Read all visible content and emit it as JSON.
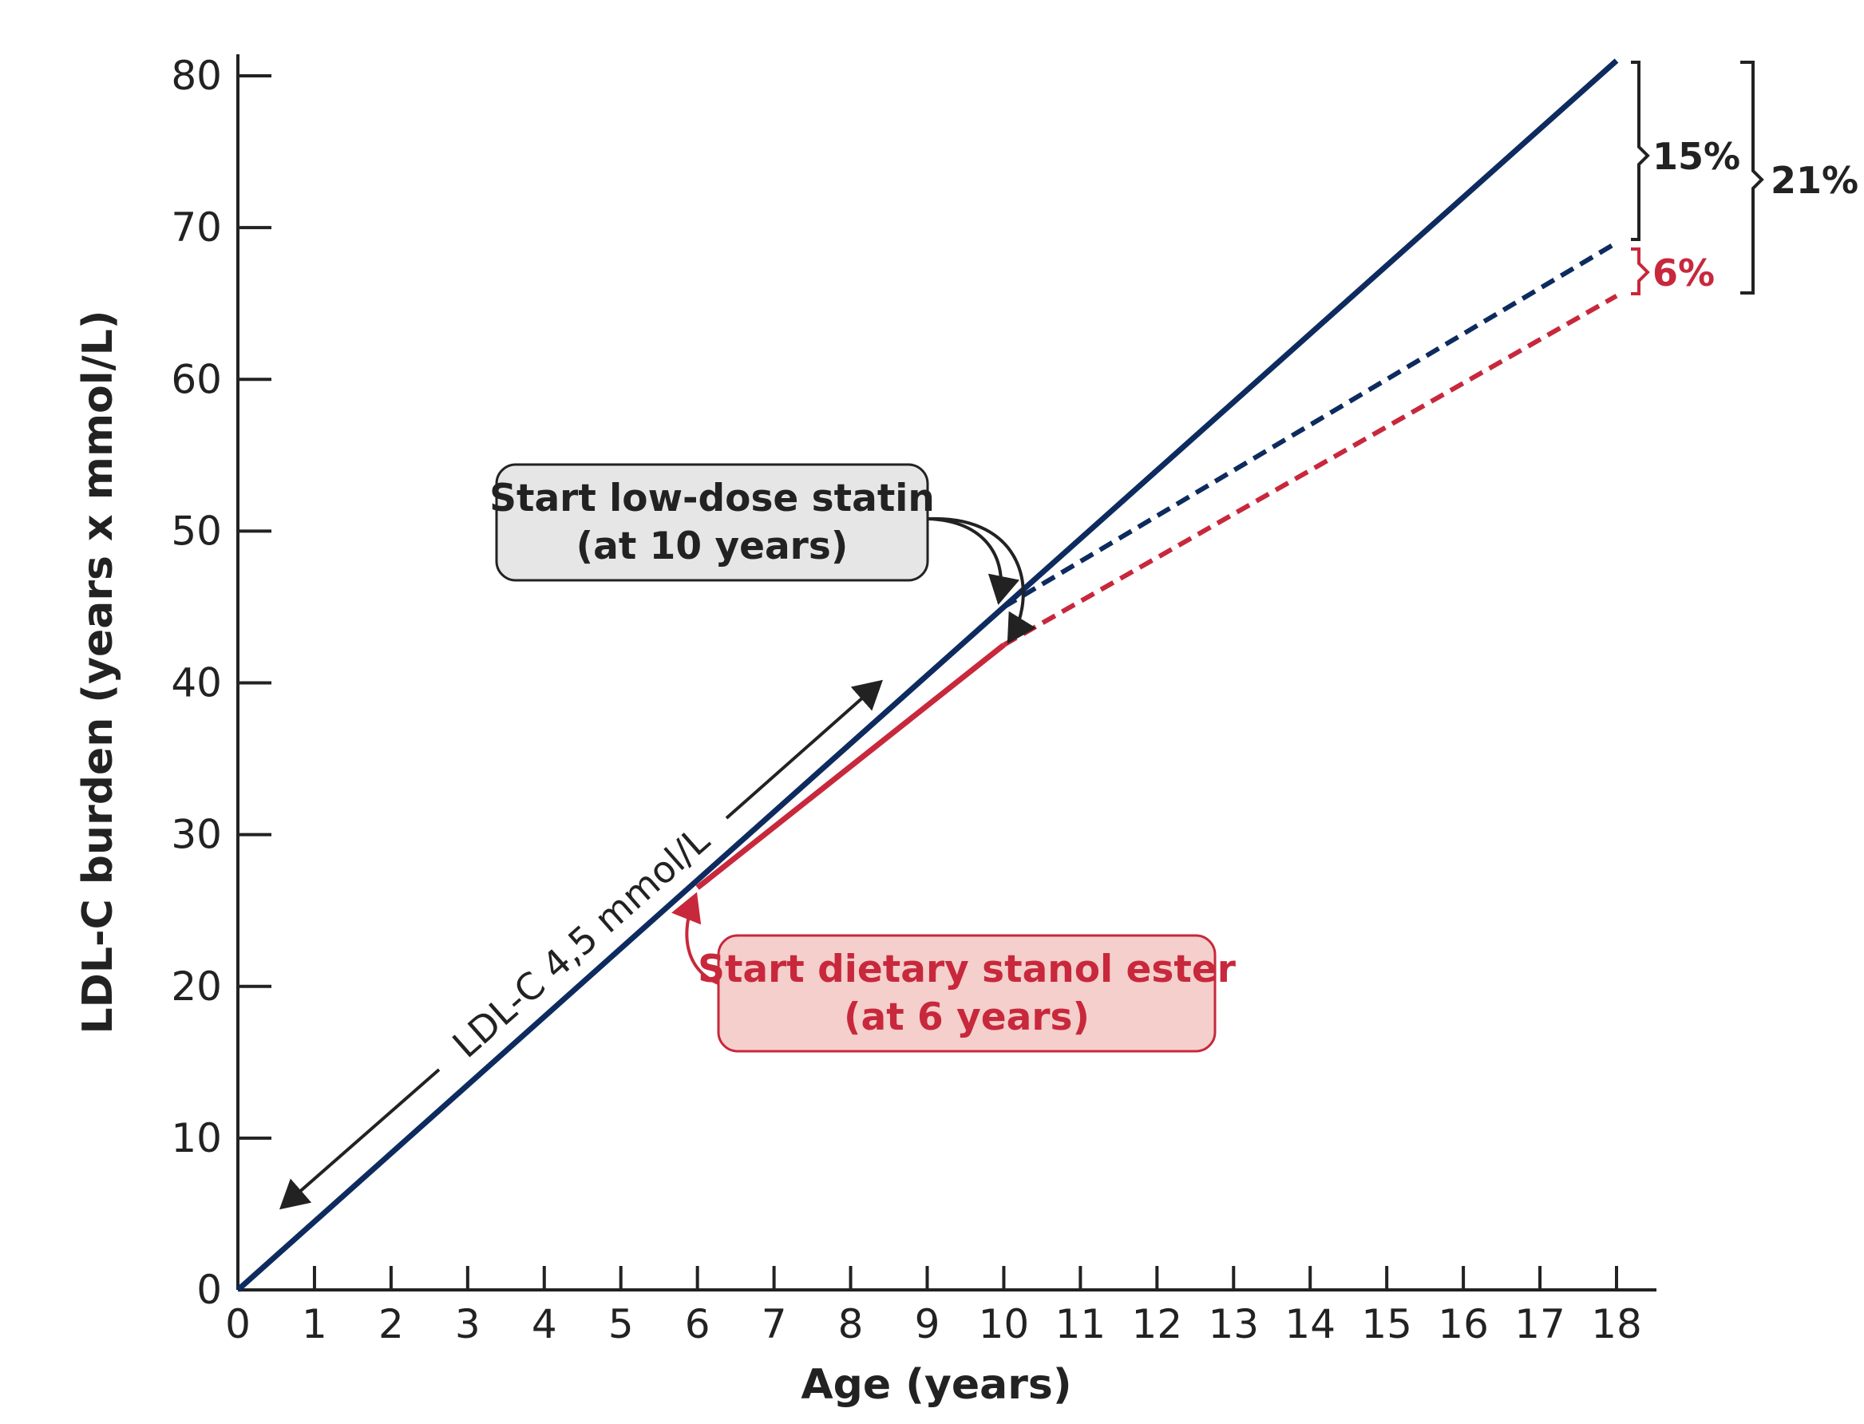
{
  "chart_data": {
    "type": "line",
    "xlabel": "Age (years)",
    "ylabel": "LDL-C burden (years x mmol/L)",
    "xlim": [
      0,
      18
    ],
    "ylim": [
      0,
      80
    ],
    "x_ticks": [
      "0",
      "1",
      "2",
      "3",
      "4",
      "5",
      "6",
      "7",
      "8",
      "9",
      "10",
      "11",
      "12",
      "13",
      "14",
      "15",
      "16",
      "17",
      "18"
    ],
    "y_ticks": [
      "0",
      "10",
      "20",
      "30",
      "40",
      "50",
      "60",
      "70",
      "80"
    ],
    "grid": false,
    "series": [
      {
        "style": "solid",
        "color": "#0d2b5e",
        "x": [
          0,
          18
        ],
        "y": [
          0,
          81
        ]
      },
      {
        "style": "dashed",
        "color": "#0d2b5e",
        "x": [
          10,
          18
        ],
        "y": [
          45,
          69
        ]
      },
      {
        "style": "solid",
        "color": "#c8283c",
        "x": [
          6,
          10
        ],
        "y": [
          26.5,
          42.5
        ]
      },
      {
        "style": "dashed",
        "color": "#c8283c",
        "x": [
          10,
          18
        ],
        "y": [
          42.5,
          65.5
        ]
      }
    ],
    "annotations": {
      "diagonal_label": "LDL-C 4,5 mmol/L",
      "statin": {
        "line1": "Start low-dose statin",
        "line2": "(at 10 years)"
      },
      "stanol": {
        "line1": "Start dietary stanol ester",
        "line2": "(at 6 years)"
      },
      "pct_15": "15%",
      "pct_21": "21%",
      "pct_6": "6%"
    },
    "colors": {
      "navy": "#0d2b5e",
      "red": "#c8283c",
      "statin_box_fill": "#e6e6e6",
      "stanol_box_fill": "#f4cfcb"
    }
  }
}
